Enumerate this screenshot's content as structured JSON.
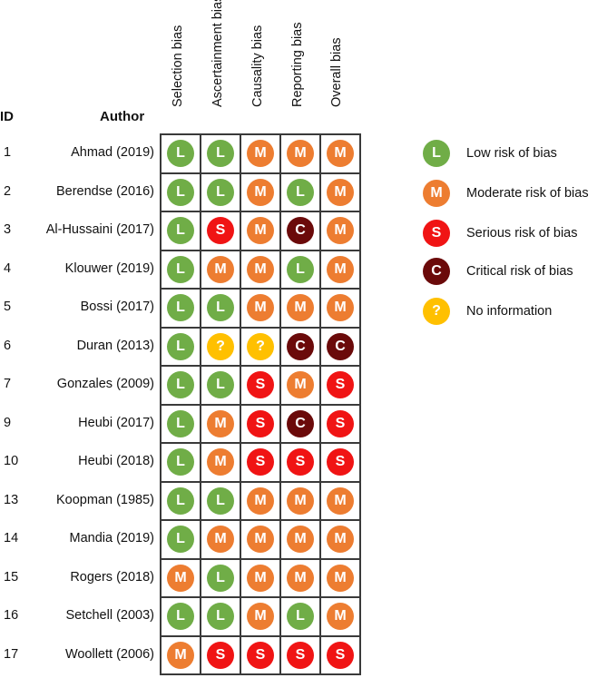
{
  "headers": {
    "id": "ID",
    "author": "Author",
    "columns": [
      "Selection bias",
      "Ascertainment bias",
      "Causality bias",
      "Reporting bias",
      "Overall bias"
    ]
  },
  "rows": [
    {
      "id": "1",
      "author": "Ahmad (2019)",
      "ratings": [
        "L",
        "L",
        "M",
        "M",
        "M"
      ]
    },
    {
      "id": "2",
      "author": "Berendse (2016)",
      "ratings": [
        "L",
        "L",
        "M",
        "L",
        "M"
      ]
    },
    {
      "id": "3",
      "author": "Al-Hussaini (2017)",
      "ratings": [
        "L",
        "S",
        "M",
        "C",
        "M"
      ]
    },
    {
      "id": "4",
      "author": "Klouwer (2019)",
      "ratings": [
        "L",
        "M",
        "M",
        "L",
        "M"
      ]
    },
    {
      "id": "5",
      "author": "Bossi (2017)",
      "ratings": [
        "L",
        "L",
        "M",
        "M",
        "M"
      ]
    },
    {
      "id": "6",
      "author": "Duran (2013)",
      "ratings": [
        "L",
        "?",
        "?",
        "C",
        "C"
      ]
    },
    {
      "id": "7",
      "author": "Gonzales (2009)",
      "ratings": [
        "L",
        "L",
        "S",
        "M",
        "S"
      ]
    },
    {
      "id": "9",
      "author": "Heubi (2017)",
      "ratings": [
        "L",
        "M",
        "S",
        "C",
        "S"
      ]
    },
    {
      "id": "10",
      "author": "Heubi (2018)",
      "ratings": [
        "L",
        "M",
        "S",
        "S",
        "S"
      ]
    },
    {
      "id": "13",
      "author": "Koopman (1985)",
      "ratings": [
        "L",
        "L",
        "M",
        "M",
        "M"
      ]
    },
    {
      "id": "14",
      "author": "Mandia (2019)",
      "ratings": [
        "L",
        "M",
        "M",
        "M",
        "M"
      ]
    },
    {
      "id": "15",
      "author": "Rogers (2018)",
      "ratings": [
        "M",
        "L",
        "M",
        "M",
        "M"
      ]
    },
    {
      "id": "16",
      "author": "Setchell (2003)",
      "ratings": [
        "L",
        "L",
        "M",
        "L",
        "M"
      ]
    },
    {
      "id": "17",
      "author": "Woollett (2006)",
      "ratings": [
        "M",
        "S",
        "S",
        "S",
        "S"
      ]
    }
  ],
  "legend": [
    {
      "symbol": "L",
      "label": "Low risk of bias",
      "color": "#70ad47"
    },
    {
      "symbol": "M",
      "label": "Moderate risk of bias",
      "color": "#ed7d31"
    },
    {
      "symbol": "S",
      "label": "Serious risk of bias",
      "color": "#f01414"
    },
    {
      "symbol": "C",
      "label": "Critical risk of bias",
      "color": "#6b0a0a"
    },
    {
      "symbol": "?",
      "label": "No information",
      "color": "#ffc000"
    }
  ]
}
